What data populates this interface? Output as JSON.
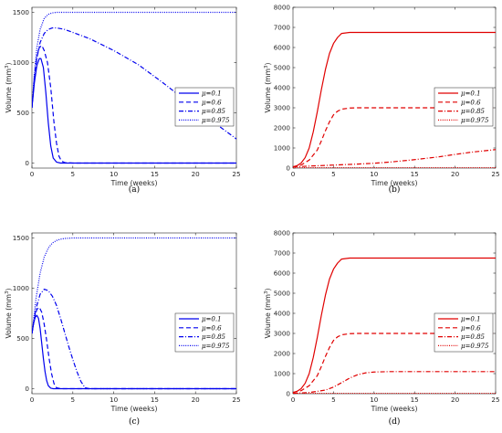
{
  "chart_data": [
    {
      "type": "line",
      "caption": "(a)",
      "xlabel": "Time (weeks)",
      "ylabel_main": "Volume (mm",
      "ylabel_sup": "3",
      "ylabel_end": ")",
      "xlim": [
        0,
        25
      ],
      "ylim": [
        -50,
        1550
      ],
      "xticks": [
        0,
        5,
        10,
        15,
        20,
        25
      ],
      "yticks": [
        0,
        500,
        1000,
        1500
      ],
      "legend": "right",
      "color": "#0000ee",
      "series": [
        {
          "name": "μ=0.1",
          "dash": "solid",
          "x": [
            0,
            0.3,
            0.6,
            0.9,
            1.1,
            1.4,
            1.7,
            2.0,
            2.3,
            2.6,
            3.0,
            3.5,
            4,
            25
          ],
          "y": [
            550,
            800,
            970,
            1040,
            1040,
            950,
            700,
            400,
            170,
            50,
            10,
            0,
            0,
            0
          ]
        },
        {
          "name": "μ=0.6",
          "dash": "dashed",
          "x": [
            0,
            0.3,
            0.6,
            0.9,
            1.2,
            1.5,
            1.9,
            2.3,
            2.7,
            3.0,
            3.3,
            3.6,
            4.0,
            5,
            25
          ],
          "y": [
            550,
            850,
            1050,
            1150,
            1170,
            1120,
            1000,
            750,
            400,
            200,
            70,
            20,
            5,
            0,
            0
          ]
        },
        {
          "name": "μ=0.85",
          "dash": "dashdot",
          "x": [
            0,
            0.3,
            0.6,
            1,
            1.5,
            2,
            2.5,
            3,
            4,
            5,
            7,
            10,
            13,
            16,
            19,
            22,
            25
          ],
          "y": [
            550,
            850,
            1050,
            1200,
            1290,
            1330,
            1345,
            1345,
            1330,
            1300,
            1240,
            1120,
            980,
            800,
            610,
            420,
            240
          ]
        },
        {
          "name": "μ=0.975",
          "dash": "dotted",
          "x": [
            0,
            0.3,
            0.6,
            1,
            1.5,
            2,
            2.5,
            3,
            4,
            25
          ],
          "y": [
            550,
            900,
            1150,
            1330,
            1440,
            1480,
            1495,
            1500,
            1500,
            1500
          ]
        }
      ]
    },
    {
      "type": "line",
      "caption": "(b)",
      "xlabel": "Time (weeks)",
      "ylabel_main": "Volume (mm",
      "ylabel_sup": "3",
      "ylabel_end": ")",
      "xlim": [
        0,
        25
      ],
      "ylim": [
        0,
        8000
      ],
      "xticks": [
        0,
        5,
        10,
        15,
        20,
        25
      ],
      "yticks": [
        0,
        1000,
        2000,
        3000,
        4000,
        5000,
        6000,
        7000,
        8000
      ],
      "legend": "right",
      "color": "#e00000",
      "series": [
        {
          "name": "μ=0.1",
          "dash": "solid",
          "x": [
            0,
            0.5,
            1,
            1.5,
            2,
            2.5,
            3,
            3.5,
            4,
            4.5,
            5,
            5.5,
            6,
            7,
            25
          ],
          "y": [
            60,
            120,
            250,
            520,
            1000,
            1800,
            2800,
            3900,
            4900,
            5700,
            6200,
            6500,
            6700,
            6750,
            6750
          ]
        },
        {
          "name": "μ=0.6",
          "dash": "dashed",
          "x": [
            0,
            1,
            2,
            3,
            3.5,
            4,
            4.5,
            5,
            5.5,
            6,
            7,
            8,
            25
          ],
          "y": [
            60,
            150,
            400,
            900,
            1350,
            1850,
            2300,
            2650,
            2830,
            2930,
            2990,
            3000,
            3000
          ]
        },
        {
          "name": "μ=0.85",
          "dash": "dashdot",
          "x": [
            0,
            2,
            5,
            8,
            10,
            12,
            15,
            18,
            20,
            22,
            25
          ],
          "y": [
            60,
            100,
            150,
            200,
            240,
            300,
            420,
            560,
            680,
            790,
            920
          ]
        },
        {
          "name": "μ=0.975",
          "dash": "dotted",
          "x": [
            0,
            5,
            10,
            25
          ],
          "y": [
            20,
            20,
            20,
            20
          ]
        }
      ]
    },
    {
      "type": "line",
      "caption": "(c)",
      "xlabel": "Time (weeks)",
      "ylabel_main": "Volume (mm",
      "ylabel_sup": "3",
      "ylabel_end": ")",
      "xlim": [
        0,
        25
      ],
      "ylim": [
        -50,
        1550
      ],
      "xticks": [
        0,
        5,
        10,
        15,
        20,
        25
      ],
      "yticks": [
        0,
        500,
        1000,
        1500
      ],
      "legend": "right",
      "color": "#0000ee",
      "series": [
        {
          "name": "μ=0.1",
          "dash": "solid",
          "x": [
            0,
            0.2,
            0.4,
            0.6,
            0.8,
            1.0,
            1.2,
            1.4,
            1.6,
            1.8,
            2.0,
            2.3,
            2.6,
            3,
            25
          ],
          "y": [
            550,
            650,
            710,
            730,
            700,
            600,
            450,
            300,
            170,
            80,
            30,
            5,
            0,
            0,
            0
          ]
        },
        {
          "name": "μ=0.6",
          "dash": "dashed",
          "x": [
            0,
            0.3,
            0.6,
            0.9,
            1.2,
            1.5,
            1.8,
            2.1,
            2.4,
            2.7,
            3.0,
            3.5,
            25
          ],
          "y": [
            550,
            700,
            790,
            810,
            760,
            640,
            480,
            300,
            150,
            50,
            10,
            0,
            0
          ]
        },
        {
          "name": "μ=0.85",
          "dash": "dashdot",
          "x": [
            0,
            0.5,
            1,
            1.5,
            2,
            2.5,
            3,
            3.5,
            4,
            4.5,
            5,
            5.5,
            6,
            6.5,
            7,
            25
          ],
          "y": [
            550,
            800,
            940,
            990,
            975,
            920,
            830,
            700,
            560,
            420,
            290,
            170,
            70,
            10,
            0,
            0
          ]
        },
        {
          "name": "μ=0.975",
          "dash": "dotted",
          "x": [
            0,
            0.5,
            1,
            1.5,
            2,
            2.5,
            3,
            3.5,
            4,
            5,
            25
          ],
          "y": [
            550,
            900,
            1150,
            1310,
            1400,
            1450,
            1475,
            1488,
            1495,
            1500,
            1500
          ]
        }
      ]
    },
    {
      "type": "line",
      "caption": "(d)",
      "xlabel": "Time (weeks)",
      "ylabel_main": "Volume (mm",
      "ylabel_sup": "3",
      "ylabel_end": ")",
      "xlim": [
        0,
        25
      ],
      "ylim": [
        0,
        8000
      ],
      "xticks": [
        0,
        5,
        10,
        15,
        20,
        25
      ],
      "yticks": [
        0,
        1000,
        2000,
        3000,
        4000,
        5000,
        6000,
        7000,
        8000
      ],
      "legend": "right",
      "color": "#e00000",
      "series": [
        {
          "name": "μ=0.1",
          "dash": "solid",
          "x": [
            0,
            0.5,
            1,
            1.5,
            2,
            2.5,
            3,
            3.5,
            4,
            4.5,
            5,
            5.5,
            6,
            7,
            25
          ],
          "y": [
            60,
            120,
            250,
            520,
            1000,
            1800,
            2800,
            3900,
            4900,
            5700,
            6200,
            6500,
            6700,
            6750,
            6750
          ]
        },
        {
          "name": "μ=0.6",
          "dash": "dashed",
          "x": [
            0,
            1,
            2,
            3,
            3.5,
            4,
            4.5,
            5,
            5.5,
            6,
            7,
            8,
            25
          ],
          "y": [
            60,
            150,
            400,
            900,
            1350,
            1850,
            2300,
            2650,
            2830,
            2930,
            2990,
            3000,
            3000
          ]
        },
        {
          "name": "μ=0.85",
          "dash": "dashdot",
          "x": [
            0,
            2,
            4,
            5,
            6,
            7,
            8,
            9,
            10,
            12,
            15,
            25
          ],
          "y": [
            20,
            60,
            180,
            330,
            550,
            780,
            950,
            1040,
            1080,
            1100,
            1100,
            1100
          ]
        },
        {
          "name": "μ=0.975",
          "dash": "dotted",
          "x": [
            0,
            5,
            10,
            25
          ],
          "y": [
            20,
            20,
            20,
            20
          ]
        }
      ]
    }
  ]
}
